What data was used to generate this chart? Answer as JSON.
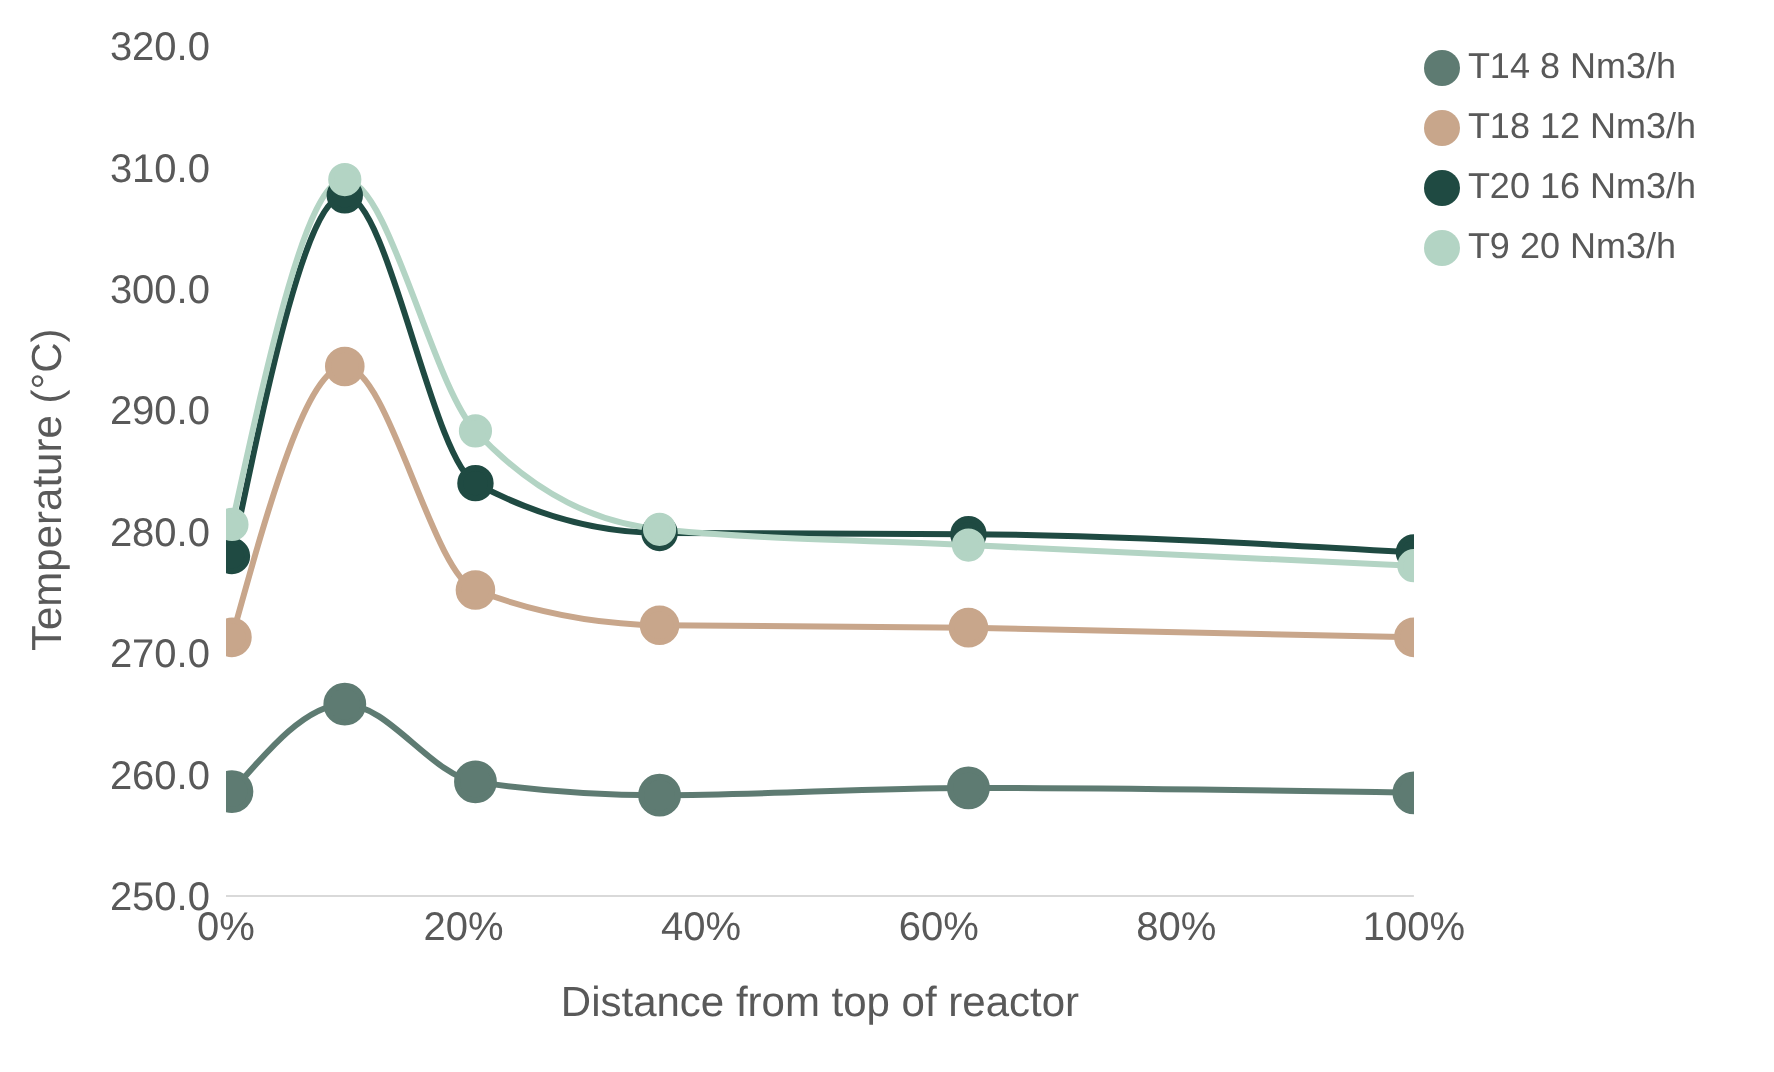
{
  "chart_data": {
    "type": "line",
    "xlabel": "Distance from top of reactor",
    "ylabel": "Temperature (°C)",
    "x": [
      0.5,
      10,
      21,
      36.5,
      62.5,
      100
    ],
    "series": [
      {
        "name": "T14 8 Nm3/h",
        "color": "#5e7b72",
        "values": [
          258.6,
          265.8,
          259.4,
          258.3,
          258.9,
          258.5
        ]
      },
      {
        "name": "T18 12 Nm3/h",
        "color": "#c8a68b",
        "values": [
          271.3,
          293.6,
          275.2,
          272.3,
          272.1,
          271.3
        ]
      },
      {
        "name": "T20 16 Nm3/h",
        "color": "#1f4a42",
        "values": [
          278.0,
          307.7,
          284.0,
          279.9,
          279.8,
          278.3
        ]
      },
      {
        "name": "T9 20 Nm3/h",
        "color": "#b3d4c4",
        "values": [
          280.6,
          309.0,
          288.3,
          280.2,
          278.9,
          277.2
        ]
      }
    ],
    "xlim": [
      0,
      100
    ],
    "xticks": [
      {
        "value": 0,
        "label": "0%"
      },
      {
        "value": 20,
        "label": "20%"
      },
      {
        "value": 40,
        "label": "40%"
      },
      {
        "value": 60,
        "label": "60%"
      },
      {
        "value": 80,
        "label": "80%"
      },
      {
        "value": 100,
        "label": "100%"
      }
    ],
    "ylim": [
      250,
      320
    ],
    "yticks": [
      {
        "value": 250,
        "label": "250.0"
      },
      {
        "value": 260,
        "label": "260.0"
      },
      {
        "value": 270,
        "label": "270.0"
      },
      {
        "value": 280,
        "label": "280.0"
      },
      {
        "value": 290,
        "label": "290.0"
      },
      {
        "value": 300,
        "label": "300.0"
      },
      {
        "value": 310,
        "label": "310.0"
      },
      {
        "value": 320,
        "label": "320.0"
      }
    ],
    "grid": false,
    "legend": "top right",
    "marker": "circle",
    "line_style": "solid"
  }
}
